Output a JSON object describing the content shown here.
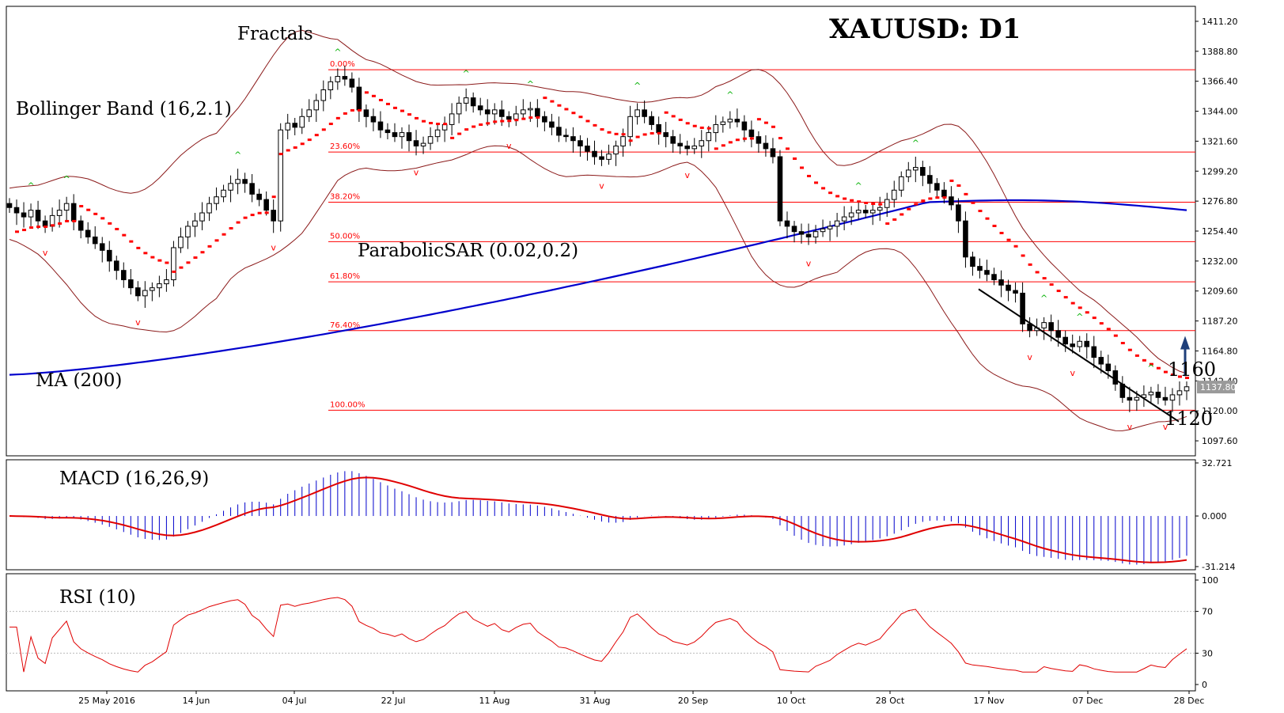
{
  "chart_data": [
    {
      "panel": "price",
      "type": "candlestick",
      "title": "XAUUSD: D1",
      "symbol_label": "",
      "ylim": [
        1086.4,
        1422.4
      ],
      "y_ticks": [
        "1411.20",
        "1388.80",
        "1366.40",
        "1344.00",
        "1321.60",
        "1299.20",
        "1276.80",
        "1254.40",
        "1232.00",
        "1209.60",
        "1187.20",
        "1164.80",
        "1142.40",
        "1120.00",
        "1097.60"
      ],
      "current_price": "1137.80",
      "x_ticks": [
        "25 May 2016",
        "14 Jun",
        "04 Jul",
        "22 Jul",
        "11 Aug",
        "31 Aug",
        "20 Sep",
        "10 Oct",
        "28 Oct",
        "17 Nov",
        "07 Dec",
        "28 Dec"
      ],
      "indicator_labels": {
        "fractals": "Fractals",
        "bollinger": "Bollinger Band (16,2.1)",
        "sar": "ParabolicSAR (0.02,0.2)",
        "ma": "MA (200)"
      },
      "fibonacci_levels": [
        {
          "label": "0.00%",
          "price": 1375.0
        },
        {
          "label": "23.60%",
          "price": 1313.5
        },
        {
          "label": "38.20%",
          "price": 1276.0
        },
        {
          "label": "50.00%",
          "price": 1246.5
        },
        {
          "label": "61.80%",
          "price": 1216.5
        },
        {
          "label": "76.40%",
          "price": 1180.0
        },
        {
          "label": "100.00%",
          "price": 1120.5
        }
      ],
      "annotations": {
        "resistance": "1160",
        "support": "1120",
        "arrow": "up"
      },
      "ohlc_approx_daily": {
        "note_series": [
          1272,
          1268,
          1265,
          1270,
          1262,
          1258,
          1266,
          1270,
          1275,
          1262,
          1255,
          1250,
          1245,
          1240,
          1232,
          1225,
          1218,
          1212,
          1206,
          1210,
          1212,
          1215,
          1218,
          1242,
          1250,
          1258,
          1262,
          1268,
          1275,
          1280,
          1285,
          1290,
          1293,
          1290,
          1282,
          1278,
          1270,
          1262,
          1330,
          1335,
          1332,
          1340,
          1345,
          1352,
          1360,
          1366,
          1370,
          1368,
          1362,
          1345,
          1340,
          1336,
          1330,
          1328,
          1325,
          1328,
          1322,
          1318,
          1320,
          1325,
          1330,
          1334,
          1342,
          1350,
          1354,
          1348,
          1345,
          1342,
          1345,
          1340,
          1338,
          1342,
          1345,
          1346,
          1340,
          1336,
          1332,
          1326,
          1325,
          1322,
          1318,
          1314,
          1310,
          1308,
          1312,
          1318,
          1325,
          1340,
          1345,
          1340,
          1334,
          1328,
          1325,
          1320,
          1318,
          1316,
          1318,
          1322,
          1328,
          1334,
          1336,
          1338,
          1336,
          1330,
          1325,
          1320,
          1316,
          1310,
          1262,
          1258,
          1254,
          1252,
          1250,
          1254,
          1256,
          1258,
          1262,
          1265,
          1268,
          1270,
          1268,
          1270,
          1272,
          1278,
          1285,
          1295,
          1300,
          1302,
          1296,
          1290,
          1285,
          1280,
          1274,
          1262,
          1235,
          1228,
          1225,
          1222,
          1218,
          1214,
          1210,
          1208,
          1185,
          1180,
          1182,
          1186,
          1180,
          1175,
          1170,
          1168,
          1172,
          1168,
          1160,
          1155,
          1150,
          1140,
          1130,
          1128,
          1130,
          1132,
          1134,
          1130,
          1128,
          1132,
          1135,
          1138
        ]
      },
      "ma200": {
        "start": 1147,
        "end": 1270
      },
      "colors": {
        "ma": "#0000cc",
        "bollinger": "#8b1a1a",
        "sar": "#ff0000",
        "fib": "#ff0000",
        "trend": "#000000",
        "fractal_up": "#00b000",
        "fractal_down": "#ff0000",
        "arrow": "#1f3f7a"
      }
    },
    {
      "panel": "macd",
      "type": "histogram+line",
      "label": "MACD (16,26,9)",
      "y_ticks": [
        "32.721",
        "0.000",
        "-31.214"
      ],
      "ylim": [
        -31.214,
        32.721
      ],
      "colors": {
        "hist": "#0000cc",
        "signal": "#e00000"
      }
    },
    {
      "panel": "rsi",
      "type": "line",
      "label": "RSI (10)",
      "y_ticks": [
        "100",
        "70",
        "30",
        "0"
      ],
      "ylim": [
        0,
        100
      ],
      "colors": {
        "line": "#e00000"
      }
    }
  ]
}
